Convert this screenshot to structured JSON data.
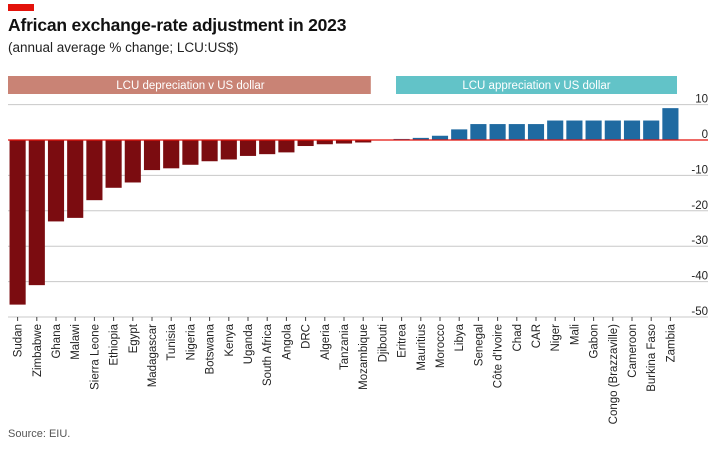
{
  "header": {
    "title": "African exchange-rate adjustment in 2023",
    "subtitle": "(annual average % change; LCU:US$)"
  },
  "footer": {
    "source": "Source: EIU."
  },
  "colors": {
    "depreciation_bar": "#7b0c10",
    "appreciation_bar": "#1f6aa1",
    "depreciation_band": "#c98375",
    "appreciation_band": "#62c3c8",
    "zero_line": "#e3120b",
    "grid": "#c8c8c8"
  },
  "chart_data": {
    "type": "bar",
    "title": "African exchange-rate adjustment in 2023",
    "subtitle": "(annual average % change; LCU:US$)",
    "band_labels": {
      "depreciation": "LCU depreciation v US dollar",
      "appreciation": "LCU appreciation v US dollar"
    },
    "categories": [
      "Sudan",
      "Zimbabwe",
      "Ghana",
      "Malawi",
      "Sierra Leone",
      "Ethiopia",
      "Egypt",
      "Madagascar",
      "Tunisia",
      "Nigeria",
      "Botswana",
      "Kenya",
      "Uganda",
      "South Africa",
      "Angola",
      "DRC",
      "Algeria",
      "Tanzania",
      "Mozambique",
      "Djibouti",
      "Eritrea",
      "Mauritius",
      "Morocco",
      "Libya",
      "Senegal",
      "Côte d'Ivoire",
      "Chad",
      "CAR",
      "Niger",
      "Mali",
      "Gabon",
      "Congo (Brazzaville)",
      "Cameroon",
      "Burkina Faso",
      "Zambia"
    ],
    "values": [
      -46.5,
      -41,
      -23,
      -22,
      -17,
      -13.5,
      -12,
      -8.5,
      -8,
      -7,
      -6,
      -5.5,
      -4.5,
      -4,
      -3.5,
      -1.7,
      -1.2,
      -1,
      -0.7,
      0,
      0.3,
      0.6,
      1.2,
      3,
      4.5,
      4.5,
      4.5,
      4.5,
      5.5,
      5.5,
      5.5,
      5.5,
      5.5,
      5.5,
      9
    ],
    "yticks": [
      10,
      0,
      -10,
      -20,
      -30,
      -40,
      -50
    ],
    "ylim": [
      -50,
      12
    ],
    "grid": true
  }
}
